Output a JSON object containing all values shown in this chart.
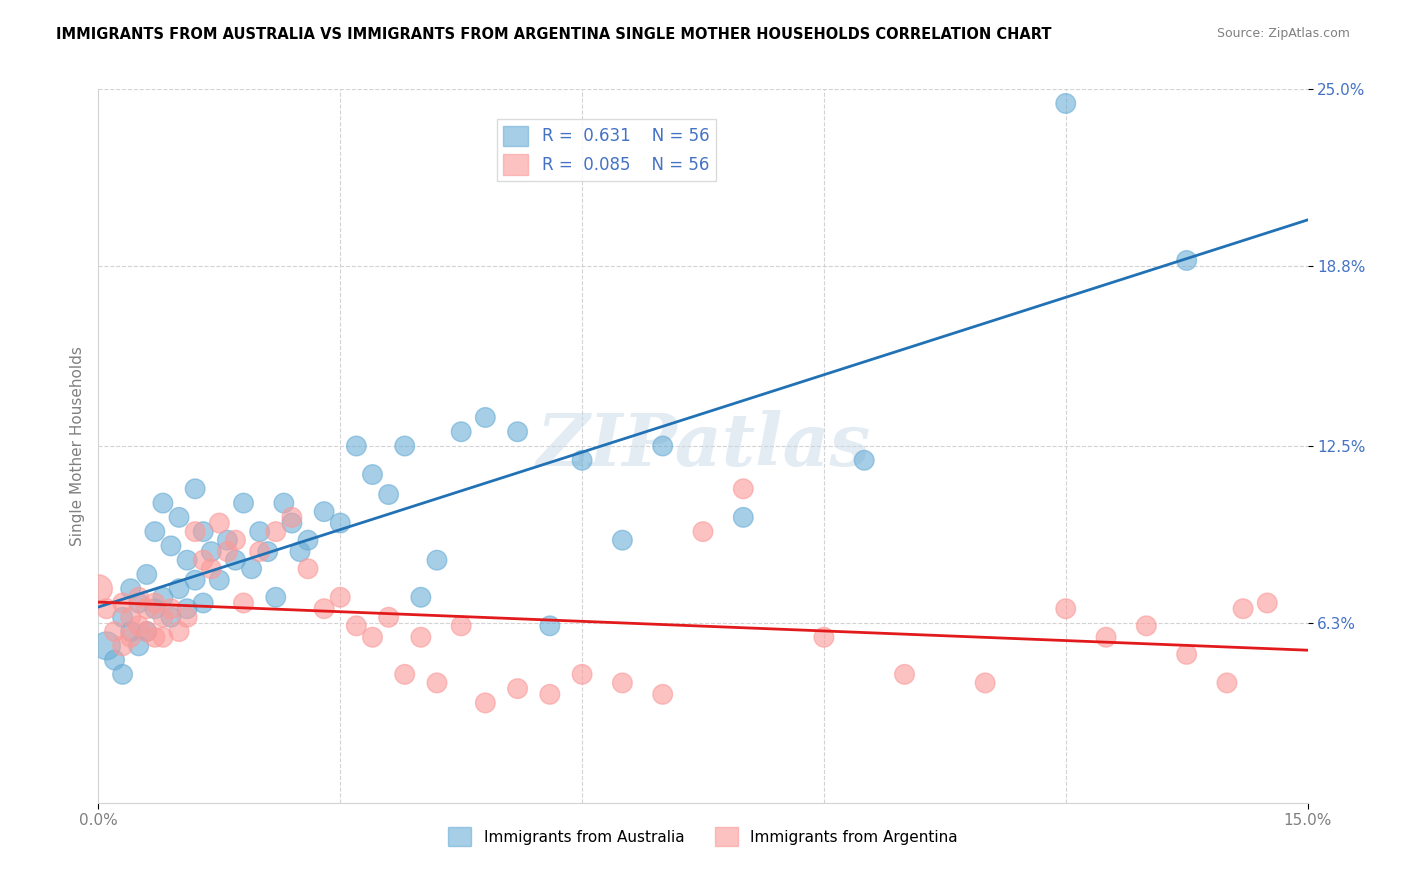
{
  "title": "IMMIGRANTS FROM AUSTRALIA VS IMMIGRANTS FROM ARGENTINA SINGLE MOTHER HOUSEHOLDS CORRELATION CHART",
  "source": "Source: ZipAtlas.com",
  "xlabel": "",
  "ylabel": "Single Mother Households",
  "xlim": [
    0.0,
    0.15
  ],
  "ylim": [
    0.0,
    0.25
  ],
  "xticks": [
    0.0,
    0.03,
    0.06,
    0.09,
    0.12,
    0.15
  ],
  "xticklabels": [
    "0.0%",
    "",
    "",
    "",
    "",
    "15.0%"
  ],
  "ytick_positions": [
    0.063,
    0.125,
    0.188,
    0.25
  ],
  "ytick_labels": [
    "6.3%",
    "12.5%",
    "18.8%",
    "25.0%"
  ],
  "R_australia": 0.631,
  "N_australia": 56,
  "R_argentina": 0.085,
  "N_argentina": 56,
  "australia_color": "#6baed6",
  "argentina_color": "#fb9a99",
  "line_australia_color": "#2171b5",
  "line_argentina_color": "#e31a1c",
  "watermark": "ZIPatlas",
  "watermark_color": "#c8d8e8",
  "legend_label_australia": "Immigrants from Australia",
  "legend_label_argentina": "Immigrants from Argentina",
  "australia_x": [
    0.001,
    0.002,
    0.003,
    0.003,
    0.004,
    0.004,
    0.005,
    0.005,
    0.006,
    0.006,
    0.007,
    0.007,
    0.008,
    0.008,
    0.009,
    0.009,
    0.01,
    0.01,
    0.011,
    0.011,
    0.012,
    0.012,
    0.013,
    0.013,
    0.014,
    0.015,
    0.016,
    0.017,
    0.018,
    0.019,
    0.02,
    0.021,
    0.022,
    0.023,
    0.024,
    0.025,
    0.026,
    0.028,
    0.03,
    0.032,
    0.034,
    0.036,
    0.038,
    0.04,
    0.042,
    0.045,
    0.048,
    0.052,
    0.056,
    0.06,
    0.065,
    0.07,
    0.08,
    0.095,
    0.12,
    0.135
  ],
  "australia_y": [
    0.055,
    0.05,
    0.065,
    0.045,
    0.075,
    0.06,
    0.07,
    0.055,
    0.08,
    0.06,
    0.095,
    0.068,
    0.105,
    0.072,
    0.09,
    0.065,
    0.1,
    0.075,
    0.085,
    0.068,
    0.11,
    0.078,
    0.095,
    0.07,
    0.088,
    0.078,
    0.092,
    0.085,
    0.105,
    0.082,
    0.095,
    0.088,
    0.072,
    0.105,
    0.098,
    0.088,
    0.092,
    0.102,
    0.098,
    0.125,
    0.115,
    0.108,
    0.125,
    0.072,
    0.085,
    0.13,
    0.135,
    0.13,
    0.062,
    0.12,
    0.092,
    0.125,
    0.1,
    0.12,
    0.245,
    0.19
  ],
  "australia_size": [
    20,
    20,
    20,
    20,
    20,
    20,
    20,
    20,
    20,
    20,
    20,
    20,
    20,
    20,
    20,
    20,
    20,
    20,
    20,
    20,
    20,
    20,
    20,
    20,
    20,
    20,
    20,
    20,
    20,
    20,
    20,
    20,
    20,
    20,
    20,
    20,
    20,
    20,
    20,
    20,
    20,
    20,
    20,
    20,
    20,
    20,
    20,
    20,
    20,
    20,
    20,
    20,
    20,
    20,
    20,
    20
  ],
  "argentina_x": [
    0.0,
    0.001,
    0.002,
    0.003,
    0.003,
    0.004,
    0.004,
    0.005,
    0.005,
    0.006,
    0.006,
    0.007,
    0.007,
    0.008,
    0.008,
    0.009,
    0.01,
    0.011,
    0.012,
    0.013,
    0.014,
    0.015,
    0.016,
    0.017,
    0.018,
    0.02,
    0.022,
    0.024,
    0.026,
    0.028,
    0.03,
    0.032,
    0.034,
    0.036,
    0.038,
    0.04,
    0.042,
    0.045,
    0.048,
    0.052,
    0.056,
    0.06,
    0.065,
    0.07,
    0.075,
    0.08,
    0.09,
    0.1,
    0.11,
    0.12,
    0.125,
    0.13,
    0.135,
    0.14,
    0.142,
    0.145
  ],
  "argentina_y": [
    0.075,
    0.068,
    0.06,
    0.07,
    0.055,
    0.065,
    0.058,
    0.072,
    0.062,
    0.068,
    0.06,
    0.07,
    0.058,
    0.065,
    0.058,
    0.068,
    0.06,
    0.065,
    0.095,
    0.085,
    0.082,
    0.098,
    0.088,
    0.092,
    0.07,
    0.088,
    0.095,
    0.1,
    0.082,
    0.068,
    0.072,
    0.062,
    0.058,
    0.065,
    0.045,
    0.058,
    0.042,
    0.062,
    0.035,
    0.04,
    0.038,
    0.045,
    0.042,
    0.038,
    0.095,
    0.11,
    0.058,
    0.045,
    0.042,
    0.068,
    0.058,
    0.062,
    0.052,
    0.042,
    0.068,
    0.07
  ],
  "argentina_size": [
    20,
    20,
    20,
    20,
    20,
    20,
    20,
    20,
    20,
    20,
    20,
    20,
    20,
    20,
    20,
    20,
    20,
    20,
    20,
    20,
    20,
    20,
    20,
    20,
    20,
    20,
    20,
    20,
    20,
    20,
    20,
    20,
    20,
    20,
    20,
    20,
    20,
    20,
    20,
    20,
    20,
    20,
    20,
    20,
    20,
    20,
    20,
    20,
    20,
    20,
    20,
    20,
    20,
    20,
    20,
    20
  ]
}
